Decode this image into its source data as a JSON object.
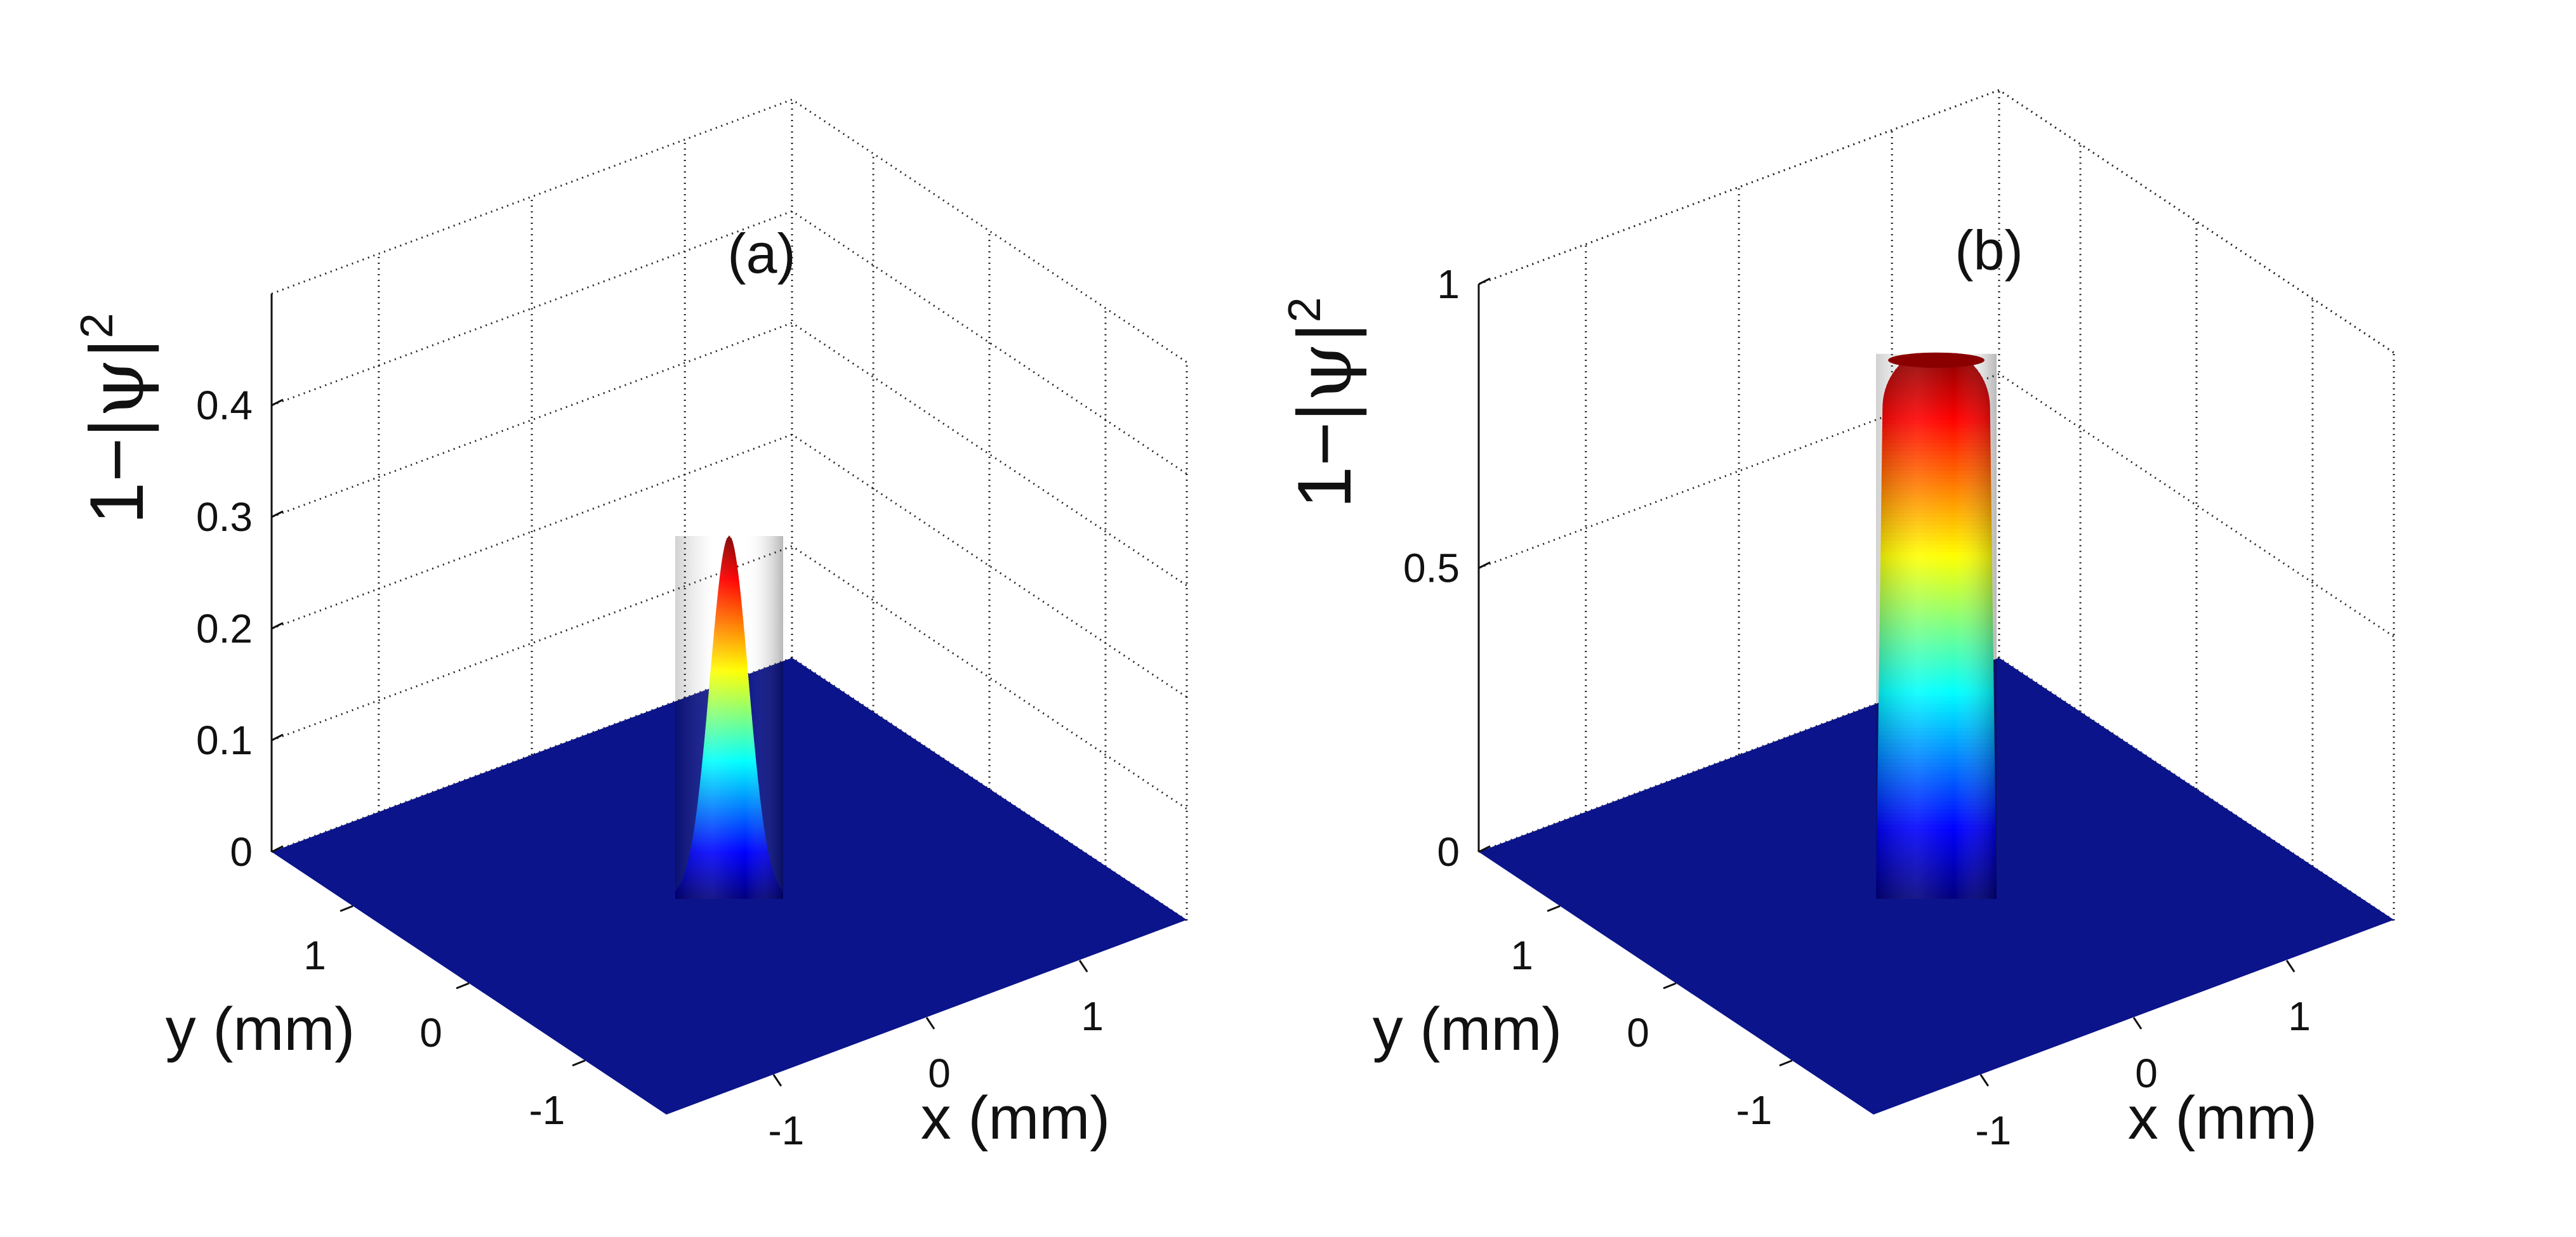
{
  "colors": {
    "floor": "#0b148a",
    "colormap": "jet",
    "grid": "#222222"
  },
  "chart_data": [
    {
      "type": "surface",
      "panel_label": "(a)",
      "xlabel": "x (mm)",
      "ylabel": "y (mm)",
      "zlabel": "1−|ψ|²",
      "zlabel_parts": {
        "prefix": "1−|",
        "symbol": "ψ",
        "suffix": "|",
        "exponent": "2"
      },
      "xlim": [
        -1.7,
        1.7
      ],
      "ylim": [
        -1.7,
        1.7
      ],
      "zlim": [
        0,
        0.5
      ],
      "xticks": [
        -1,
        0,
        1
      ],
      "yticks": [
        -1,
        0,
        1
      ],
      "zticks": [
        0,
        0.1,
        0.2,
        0.3,
        0.4
      ],
      "xtick_labels": [
        "-1",
        "0",
        "1"
      ],
      "ytick_labels": [
        "-1",
        "0",
        "1"
      ],
      "ztick_labels": [
        "0",
        "0.1",
        "0.2",
        "0.3",
        "0.4"
      ],
      "grid": true,
      "surface": {
        "shape": "gaussian",
        "center": [
          0,
          0
        ],
        "peak": 0.325,
        "width_mm": 0.3
      }
    },
    {
      "type": "surface",
      "panel_label": "(b)",
      "xlabel": "x (mm)",
      "ylabel": "y (mm)",
      "zlabel": "1−|ψ|²",
      "zlabel_parts": {
        "prefix": "1−|",
        "symbol": "ψ",
        "suffix": "|",
        "exponent": "2"
      },
      "xlim": [
        -1.7,
        1.7
      ],
      "ylim": [
        -1.7,
        1.7
      ],
      "zlim": [
        0,
        1
      ],
      "xticks": [
        -1,
        0,
        1
      ],
      "yticks": [
        -1,
        0,
        1
      ],
      "zticks": [
        0,
        0.5,
        1
      ],
      "xtick_labels": [
        "-1",
        "0",
        "1"
      ],
      "ytick_labels": [
        "-1",
        "0",
        "1"
      ],
      "ztick_labels": [
        "0",
        "0.5",
        "1"
      ],
      "grid": true,
      "surface": {
        "shape": "flat-top",
        "center": [
          0,
          0
        ],
        "peak": 0.96,
        "width_mm": 0.6
      }
    }
  ]
}
